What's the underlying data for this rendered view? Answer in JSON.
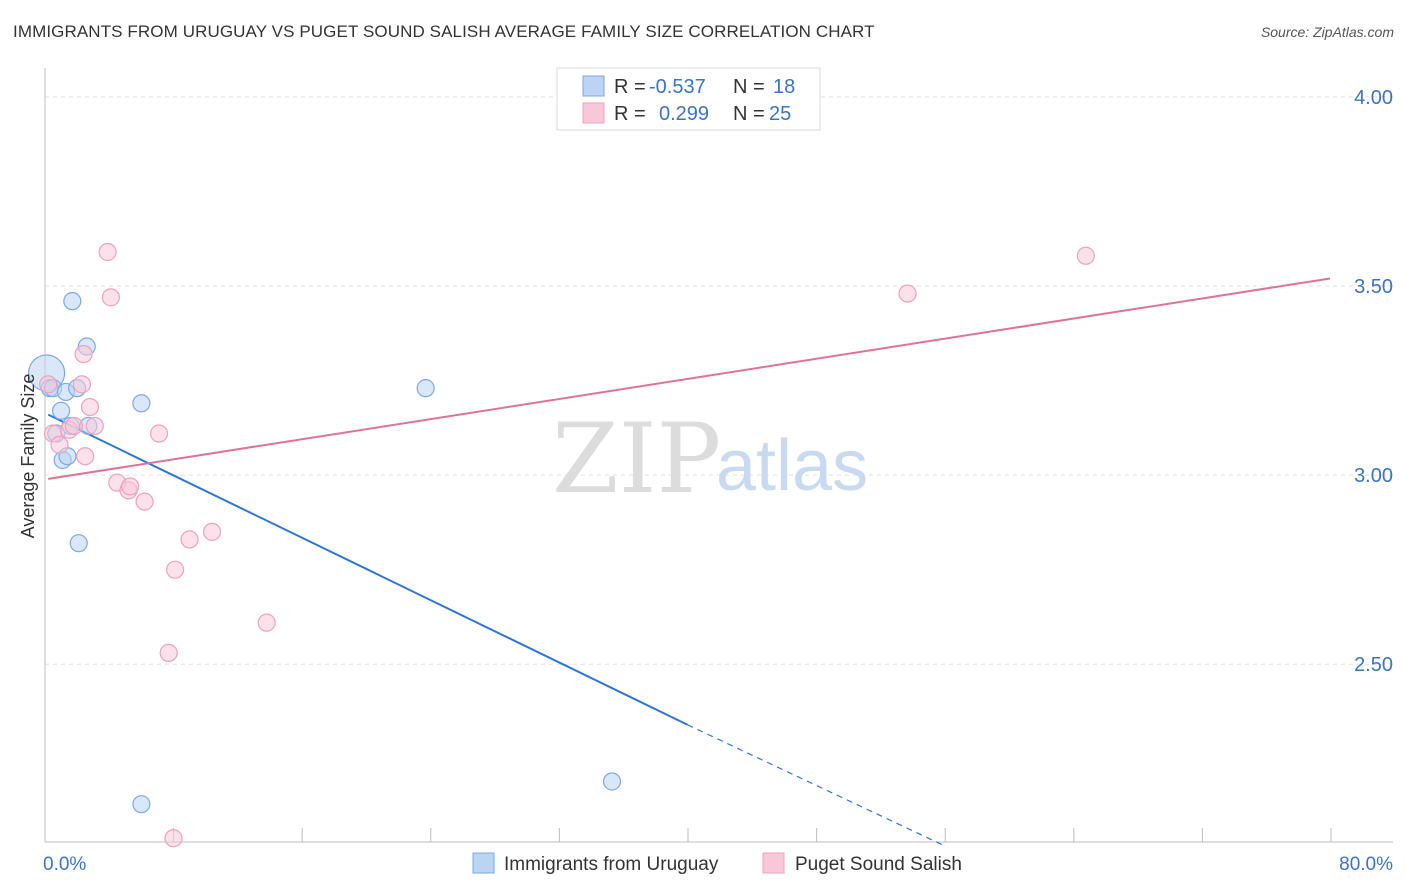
{
  "header": {
    "title": "IMMIGRANTS FROM URUGUAY VS PUGET SOUND SALISH AVERAGE FAMILY SIZE CORRELATION CHART",
    "source": "Source: ZipAtlas.com"
  },
  "watermark": {
    "part1": "ZIP",
    "part2": "atlas"
  },
  "chart_data": {
    "type": "scatter",
    "title": "IMMIGRANTS FROM URUGUAY VS PUGET SOUND SALISH AVERAGE FAMILY SIZE CORRELATION CHART",
    "xlabel": "",
    "ylabel": "Average Family Size",
    "xlim": [
      0,
      80
    ],
    "ylim": [
      2.03,
      4.05
    ],
    "x_tick_labels": {
      "min": "0.0%",
      "max": "80.0%"
    },
    "y_ticks": [
      {
        "value": 2.5,
        "label": "2.50"
      },
      {
        "value": 3.0,
        "label": "3.00"
      },
      {
        "value": 3.5,
        "label": "3.50"
      },
      {
        "value": 4.0,
        "label": "4.00"
      }
    ],
    "grid": true,
    "legend_position": "top-center",
    "series": [
      {
        "name": "Immigrants from Uruguay",
        "color": "#7aaae6",
        "fill": "#bcd4f4",
        "line_color": "#2e75d6",
        "r_label": "R = ",
        "r_value": "-0.537",
        "n_label": "N = ",
        "n_value": "18",
        "trend": {
          "x0": 0.2,
          "y0": 3.16,
          "x1": 40.0,
          "y1": 2.34,
          "dash_to_x": 56.0,
          "dash_to_y": 2.02
        },
        "points": [
          [
            0.1,
            3.27,
            "big"
          ],
          [
            0.3,
            3.23
          ],
          [
            0.5,
            3.23
          ],
          [
            0.7,
            3.11
          ],
          [
            1.0,
            3.17
          ],
          [
            1.1,
            3.04
          ],
          [
            1.3,
            3.22
          ],
          [
            1.4,
            3.05
          ],
          [
            1.6,
            3.13
          ],
          [
            1.7,
            3.46
          ],
          [
            2.0,
            3.23
          ],
          [
            2.1,
            2.82
          ],
          [
            2.6,
            3.34
          ],
          [
            2.7,
            3.13
          ],
          [
            6.0,
            3.19
          ],
          [
            6.0,
            2.13
          ],
          [
            23.7,
            3.23
          ],
          [
            35.3,
            2.19
          ]
        ]
      },
      {
        "name": "Puget Sound Salish",
        "color": "#f0a0ba",
        "fill": "#f8c8d8",
        "line_color": "#e0729a",
        "r_label": "R = ",
        "r_value": "0.299",
        "n_label": "N = ",
        "n_value": "25",
        "trend": {
          "x0": 0.2,
          "y0": 2.99,
          "x1": 80.0,
          "y1": 3.52
        },
        "points": [
          [
            0.2,
            3.24
          ],
          [
            0.5,
            3.11
          ],
          [
            0.9,
            3.08
          ],
          [
            1.5,
            3.12
          ],
          [
            1.8,
            3.13
          ],
          [
            2.3,
            3.24
          ],
          [
            2.4,
            3.32
          ],
          [
            2.5,
            3.05
          ],
          [
            2.8,
            3.18
          ],
          [
            3.1,
            3.13
          ],
          [
            3.9,
            3.59
          ],
          [
            4.1,
            3.47
          ],
          [
            4.5,
            2.98
          ],
          [
            5.2,
            2.96
          ],
          [
            5.3,
            2.97
          ],
          [
            6.2,
            2.93
          ],
          [
            7.1,
            3.11
          ],
          [
            7.7,
            2.53
          ],
          [
            8.0,
            2.04
          ],
          [
            8.1,
            2.75
          ],
          [
            9.0,
            2.83
          ],
          [
            10.4,
            2.85
          ],
          [
            13.8,
            2.61
          ],
          [
            53.7,
            3.48
          ],
          [
            64.8,
            3.58
          ]
        ]
      }
    ]
  }
}
